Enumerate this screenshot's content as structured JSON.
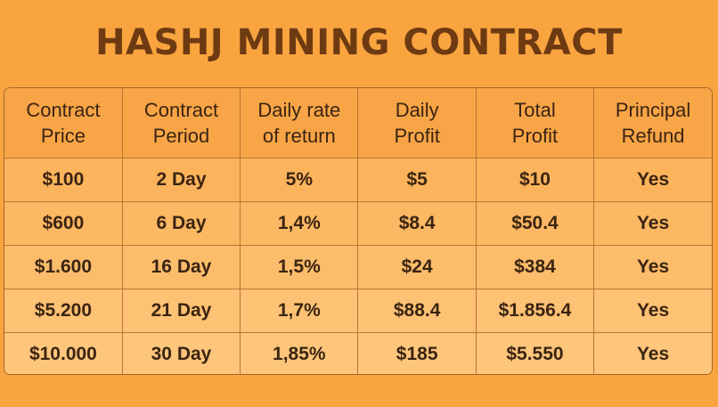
{
  "title": "HASHJ MINING CONTRACT",
  "columns": [
    {
      "line1": "Contract",
      "line2": "Price"
    },
    {
      "line1": "Contract",
      "line2": "Period"
    },
    {
      "line1": "Daily rate",
      "line2": "of return"
    },
    {
      "line1": "Daily",
      "line2": "Profit"
    },
    {
      "line1": "Total",
      "line2": "Profit"
    },
    {
      "line1": "Principal",
      "line2": "Refund"
    }
  ],
  "rows": [
    {
      "price": "$100",
      "period": "2 Day",
      "rate": "5%",
      "daily_profit": "$5",
      "total_profit": "$10",
      "refund": "Yes"
    },
    {
      "price": "$600",
      "period": "6 Day",
      "rate": "1,4%",
      "daily_profit": "$8.4",
      "total_profit": "$50.4",
      "refund": "Yes"
    },
    {
      "price": "$1.600",
      "period": "16 Day",
      "rate": "1,5%",
      "daily_profit": "$24",
      "total_profit": "$384",
      "refund": "Yes"
    },
    {
      "price": "$5.200",
      "period": "21 Day",
      "rate": "1,7%",
      "daily_profit": "$88.4",
      "total_profit": "$1.856.4",
      "refund": "Yes"
    },
    {
      "price": "$10.000",
      "period": "30 Day",
      "rate": "1,85%",
      "daily_profit": "$185",
      "total_profit": "$5.550",
      "refund": "Yes"
    }
  ],
  "colors": {
    "background": "#f9a43f",
    "title": "#6e3a12",
    "header_fill": "#f8a547",
    "cell_fill": "#fcbd6b",
    "border": "#b87634",
    "text": "#3b2412"
  }
}
